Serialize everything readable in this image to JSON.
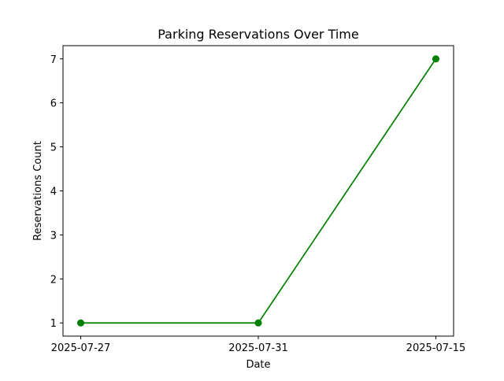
{
  "chart_data": {
    "type": "line",
    "title": "Parking Reservations Over Time",
    "xlabel": "Date",
    "ylabel": "Reservations Count",
    "categories": [
      "2025-07-27",
      "2025-07-31",
      "2025-07-15"
    ],
    "series": [
      {
        "values": [
          1,
          1,
          7
        ],
        "color": "#008000",
        "marker": "circle"
      }
    ],
    "ylim": [
      0.7,
      7.3
    ],
    "yticks": [
      1,
      2,
      3,
      4,
      5,
      6,
      7
    ],
    "grid": false,
    "legend": "none"
  }
}
